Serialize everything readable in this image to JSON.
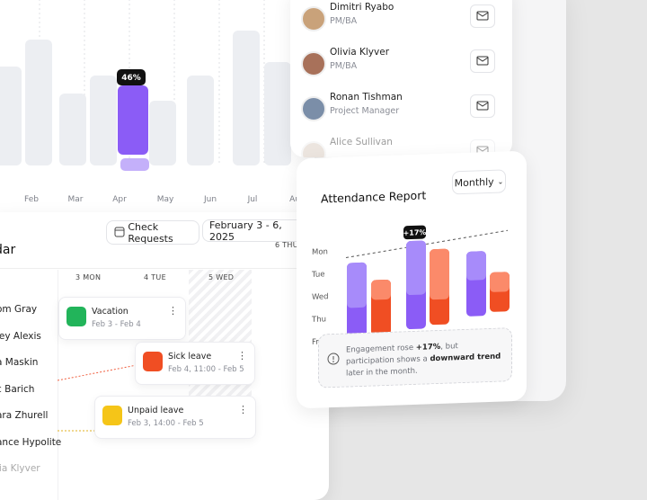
{
  "usage_chart": {
    "badge": "46%",
    "months": [
      "Feb",
      "Mar",
      "Apr",
      "May",
      "Jun",
      "Jul",
      "Au"
    ]
  },
  "team": {
    "members": [
      {
        "name": "Dimitri Ryabo",
        "role": "PM/BA"
      },
      {
        "name": "Olivia Klyver",
        "role": "PM/BA"
      },
      {
        "name": "Ronan Tishman",
        "role": "Project Manager"
      },
      {
        "name": "Alice Sullivan",
        "role": ""
      }
    ]
  },
  "calendar": {
    "title": "dar",
    "check_requests": "Check Requests",
    "date_range": "February 3 - 6, 2025",
    "days": [
      "3 MON",
      "4 TUE",
      "5 WED",
      "6 THU"
    ],
    "people": [
      "om Gray",
      "ley Alexis",
      "a Maskin",
      "c Barich",
      "ara Zhurell",
      "ance Hypolite",
      "lia Klyver"
    ],
    "events": [
      {
        "title": "Vacation",
        "time": "Feb 3 - Feb 4"
      },
      {
        "title": "Sick leave",
        "time": "Feb 4, 11:00 - Feb 5"
      },
      {
        "title": "Unpaid leave",
        "time": "Feb 3, 14:00 - Feb 5"
      }
    ]
  },
  "attendance": {
    "title": "Attendance Report",
    "period": "Monthly",
    "weekdays": [
      "Mon",
      "Tue",
      "Wed",
      "Thu",
      "Fri"
    ],
    "badge": "+17%",
    "note": [
      "Engagement rose ",
      "+17%",
      ", but participation shows a ",
      "downward trend",
      " later in the month."
    ]
  }
}
